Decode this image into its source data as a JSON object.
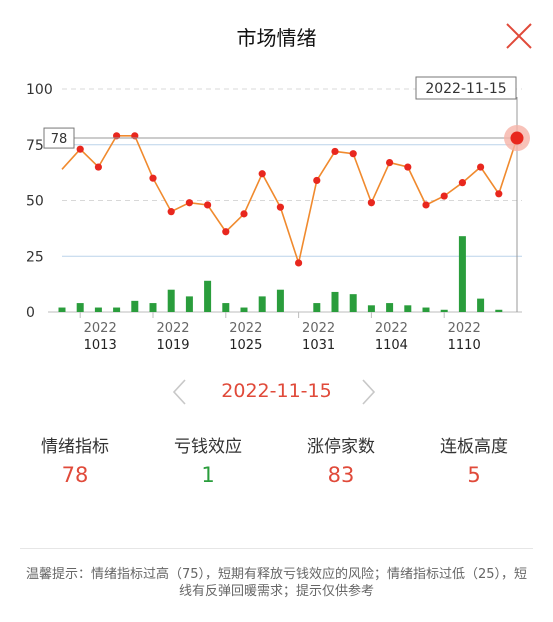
{
  "header": {
    "title": "市场情绪",
    "close_icon": "close-icon"
  },
  "colors": {
    "accent_red": "#e04a3a",
    "line_orange": "#f08a2e",
    "bar_green": "#2a9d3c",
    "up": "#e04a3a",
    "down": "#2a9d3c"
  },
  "chart_data": {
    "type": "line",
    "ylim": [
      0,
      100
    ],
    "yticks": [
      "0",
      "25",
      "50",
      "75",
      "100"
    ],
    "x_ticks": [
      {
        "year": "2022",
        "md": "1013",
        "i": 1
      },
      {
        "year": "2022",
        "md": "1019",
        "i": 5
      },
      {
        "year": "2022",
        "md": "1025",
        "i": 9
      },
      {
        "year": "2022",
        "md": "1031",
        "i": 13
      },
      {
        "year": "2022",
        "md": "1104",
        "i": 17
      },
      {
        "year": "2022",
        "md": "1110",
        "i": 21
      }
    ],
    "series": [
      {
        "values": [
          64,
          73,
          65,
          79,
          79,
          60,
          45,
          49,
          48,
          36,
          44,
          62,
          47,
          22,
          59,
          72,
          71,
          49,
          67,
          65,
          48,
          52,
          58,
          65,
          53,
          78
        ]
      },
      {
        "values": [
          2,
          4,
          2,
          2,
          5,
          4,
          10,
          7,
          14,
          4,
          2,
          7,
          10,
          0,
          4,
          9,
          8,
          3,
          4,
          3,
          2,
          1,
          34,
          6,
          1,
          0
        ]
      }
    ],
    "crosshair": {
      "date": "2022-11-15",
      "value": "78"
    }
  },
  "date_nav": {
    "current_date": "2022-11-15"
  },
  "stats": [
    {
      "label": "情绪指标",
      "value": "78",
      "tone": "red"
    },
    {
      "label": "亏钱效应",
      "value": "1",
      "tone": "green"
    },
    {
      "label": "涨停家数",
      "value": "83",
      "tone": "red"
    },
    {
      "label": "连板高度",
      "value": "5",
      "tone": "red"
    }
  ],
  "tip": "温馨提示：情绪指标过高（75），短期有释放亏钱效应的风险；情绪指标过低（25），短线有反弹回暖需求；提示仅供参考"
}
